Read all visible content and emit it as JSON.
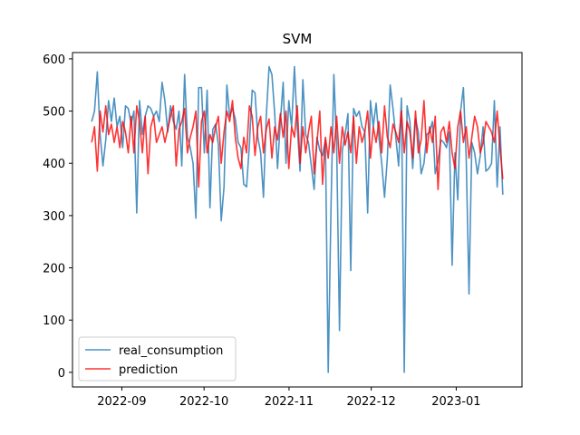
{
  "chart_data": {
    "type": "line",
    "title": "SVM",
    "xlabel": "",
    "ylabel": "",
    "x_start": "2022-08-21",
    "x_end": "2023-01-18",
    "xlim": [
      "2022-08-14",
      "2023-01-25"
    ],
    "ylim": [
      -28,
      612
    ],
    "xticks": [
      {
        "date": "2022-09-01",
        "label": "2022-09"
      },
      {
        "date": "2022-10-01",
        "label": "2022-10"
      },
      {
        "date": "2022-11-01",
        "label": "2022-11"
      },
      {
        "date": "2022-12-01",
        "label": "2022-12"
      },
      {
        "date": "2023-01-01",
        "label": "2023-01"
      }
    ],
    "yticks": [
      0,
      100,
      200,
      300,
      400,
      500,
      600
    ],
    "legend_position": "lower-left",
    "series": [
      {
        "name": "real_consumption",
        "color": "#1f77b4",
        "values": [
          480,
          500,
          575,
          455,
          395,
          445,
          520,
          480,
          525,
          470,
          490,
          430,
          510,
          505,
          475,
          500,
          305,
          520,
          455,
          490,
          510,
          505,
          490,
          500,
          480,
          555,
          520,
          460,
          510,
          480,
          465,
          500,
          395,
          570,
          450,
          430,
          400,
          295,
          545,
          545,
          420,
          540,
          315,
          465,
          475,
          435,
          290,
          355,
          550,
          490,
          505,
          485,
          440,
          430,
          360,
          355,
          435,
          540,
          535,
          450,
          420,
          335,
          490,
          585,
          570,
          495,
          390,
          480,
          555,
          400,
          520,
          470,
          585,
          470,
          385,
          560,
          455,
          440,
          395,
          350,
          450,
          425,
          415,
          445,
          0,
          320,
          570,
          435,
          80,
          425,
          455,
          495,
          195,
          505,
          490,
          500,
          470,
          460,
          305,
          520,
          470,
          515,
          450,
          400,
          335,
          410,
          550,
          505,
          450,
          395,
          525,
          0,
          510,
          480,
          390,
          485,
          460,
          380,
          400,
          455,
          460,
          480,
          380,
          405,
          445,
          440,
          430,
          460,
          205,
          420,
          330,
          500,
          545,
          410,
          150,
          440,
          420,
          380,
          415,
          470,
          385,
          390,
          400,
          520,
          355,
          470,
          340
        ]
      },
      {
        "name": "prediction",
        "color": "#ff0000",
        "values": [
          440,
          470,
          385,
          500,
          460,
          510,
          455,
          475,
          440,
          470,
          430,
          480,
          460,
          420,
          490,
          420,
          510,
          480,
          420,
          490,
          380,
          470,
          490,
          440,
          455,
          470,
          440,
          465,
          490,
          510,
          395,
          465,
          480,
          505,
          420,
          450,
          470,
          500,
          355,
          480,
          500,
          420,
          455,
          440,
          470,
          490,
          400,
          460,
          500,
          480,
          520,
          450,
          410,
          390,
          450,
          420,
          510,
          490,
          415,
          470,
          490,
          420,
          465,
          485,
          410,
          470,
          445,
          495,
          450,
          500,
          390,
          470,
          450,
          510,
          400,
          470,
          420,
          460,
          490,
          380,
          440,
          500,
          360,
          450,
          410,
          470,
          420,
          490,
          400,
          470,
          435,
          460,
          420,
          490,
          400,
          470,
          440,
          460,
          500,
          410,
          470,
          440,
          480,
          420,
          510,
          450,
          430,
          475,
          460,
          440,
          500,
          420,
          480,
          460,
          410,
          500,
          420,
          445,
          520,
          420,
          470,
          440,
          490,
          350,
          460,
          470,
          440,
          480,
          420,
          390,
          470,
          500,
          440,
          470,
          410,
          450,
          490,
          470,
          420,
          440,
          480,
          470,
          460,
          440,
          500,
          430,
          370
        ]
      }
    ]
  }
}
